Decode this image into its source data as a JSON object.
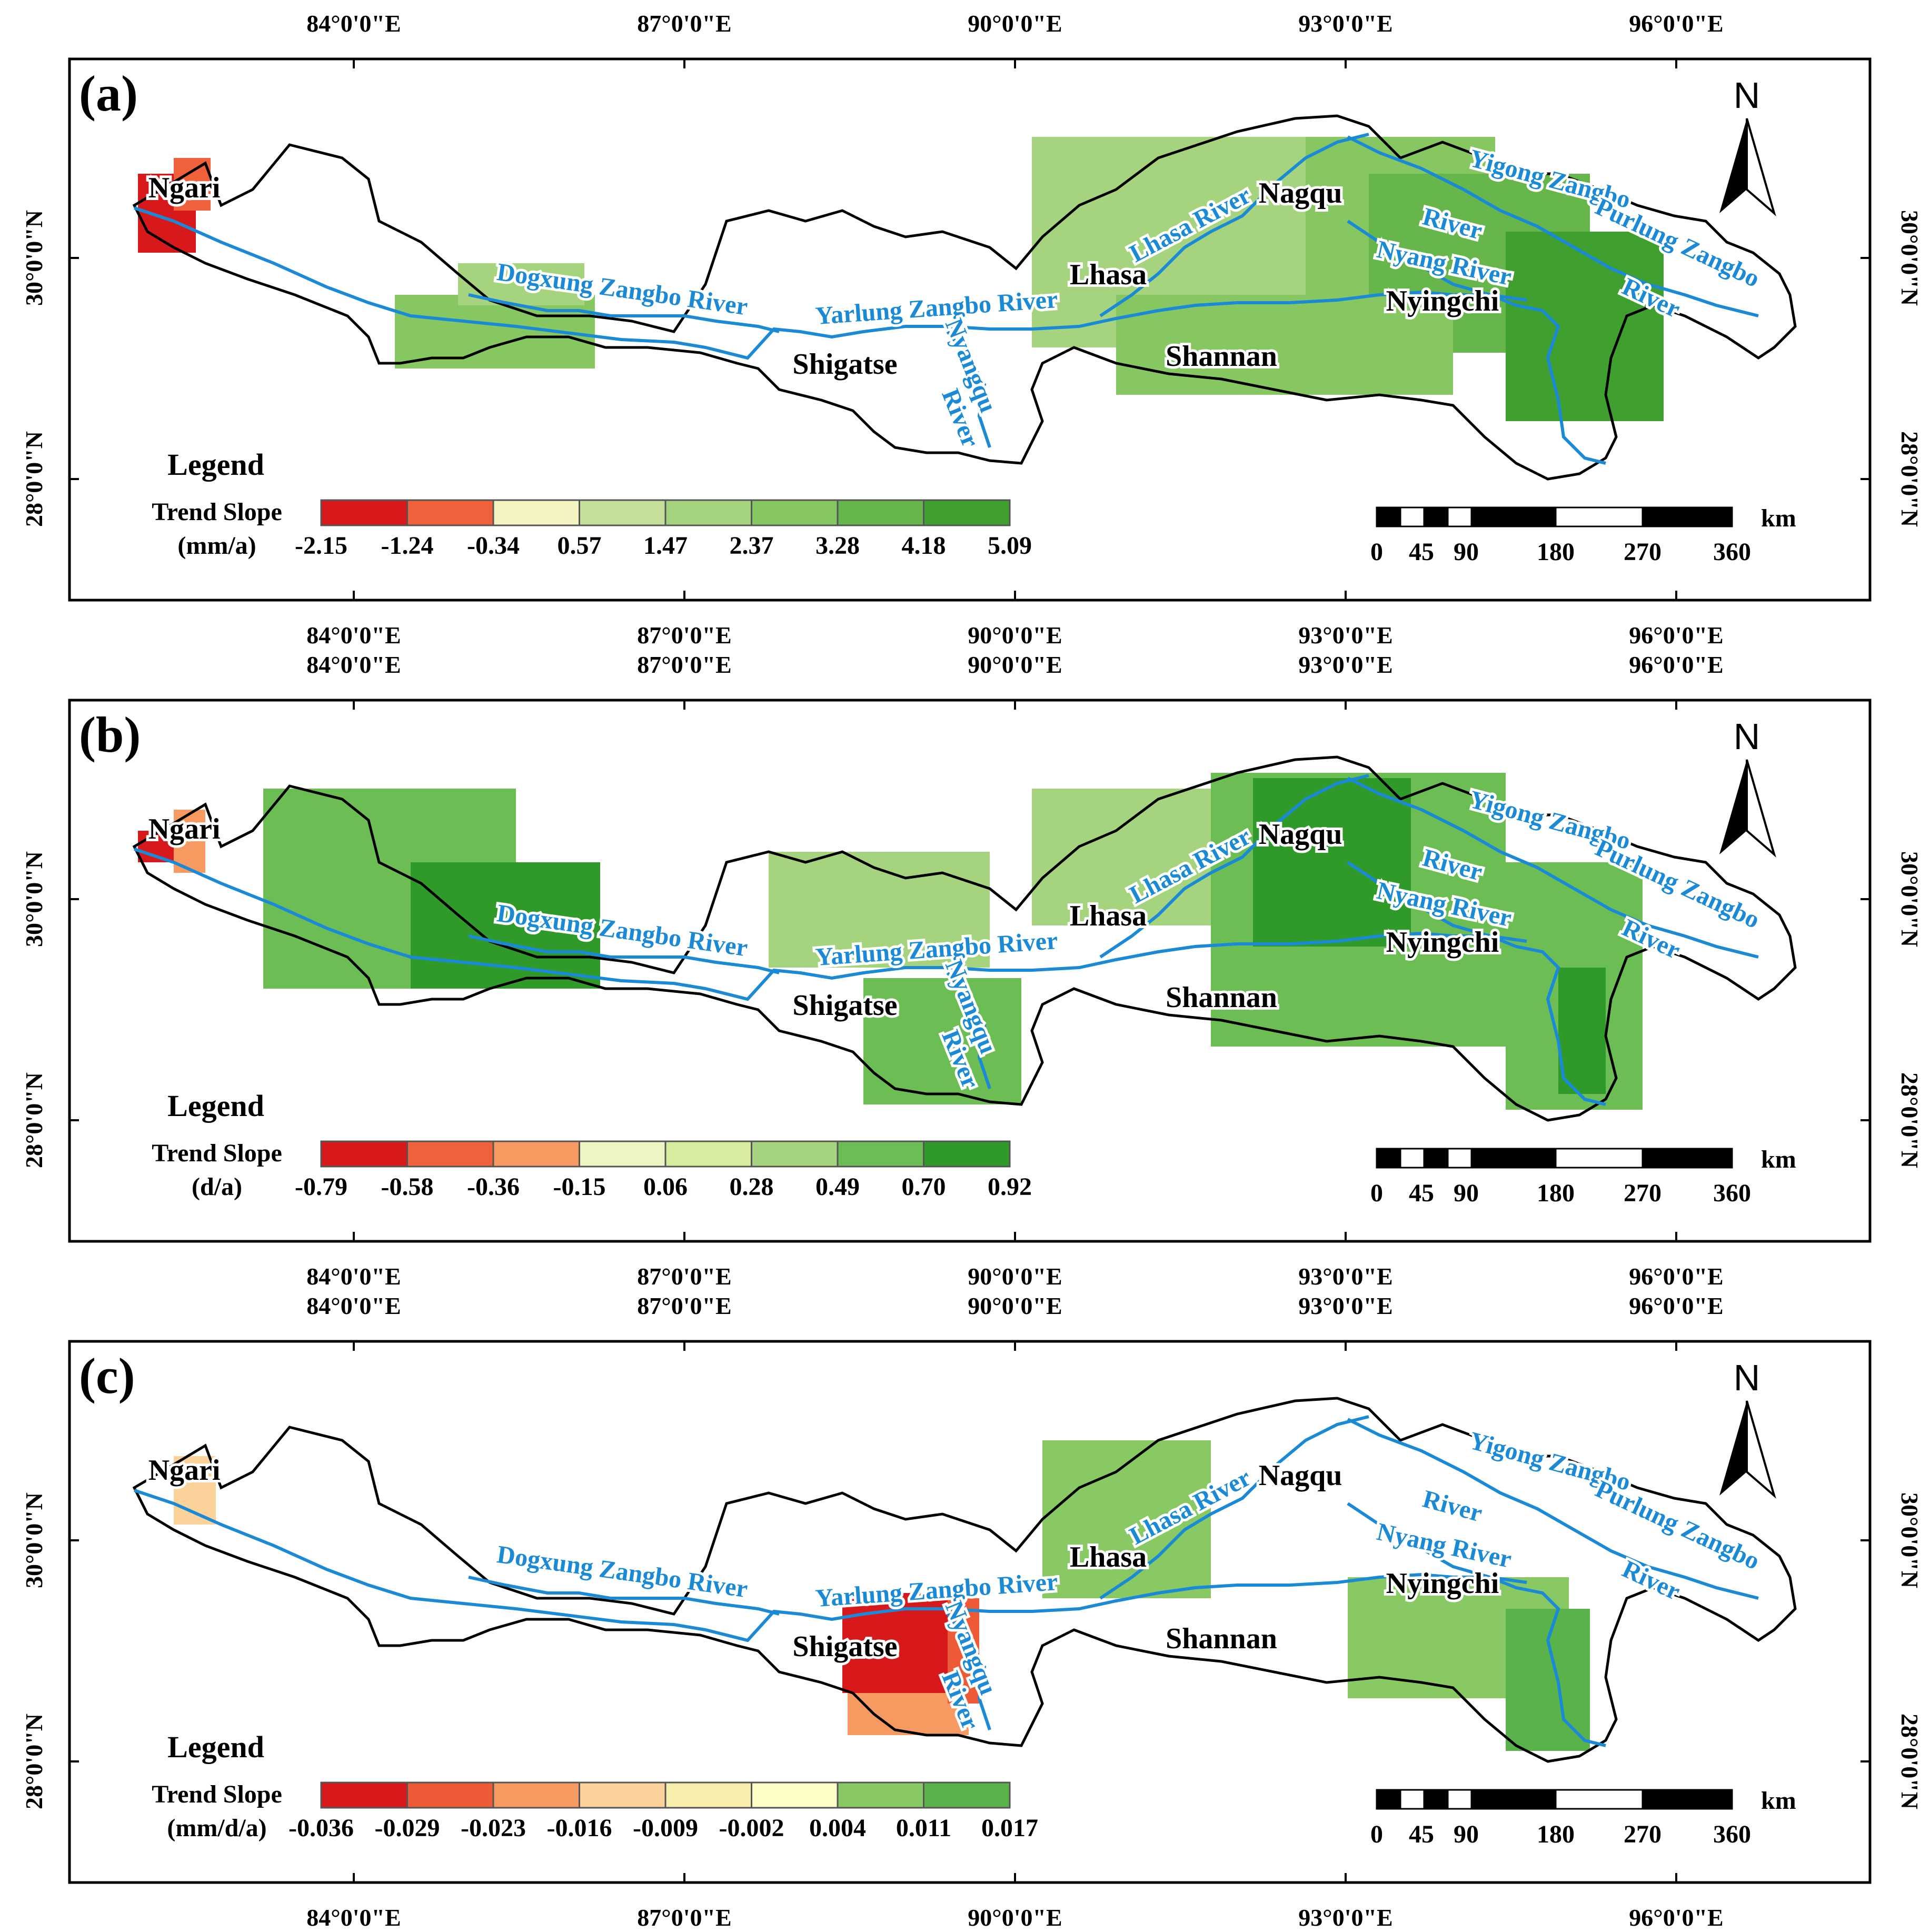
{
  "lon_ticks": [
    "84°0'0\"E",
    "87°0'0\"E",
    "90°0'0\"E",
    "93°0'0\"E",
    "96°0'0\"E"
  ],
  "lat_ticks": [
    "30°0'0\"N",
    "28°0'0\"N"
  ],
  "regions": [
    "Ngari",
    "Nagqu",
    "Lhasa",
    "Nyingchi",
    "Shigatse",
    "Shannan"
  ],
  "rivers": [
    "Lhasa River",
    "Yigong Zangbo",
    "River",
    "Purlung Zangbo",
    "River",
    "Nyang River",
    "Dogxung Zangbo River",
    "Yarlung Zangbo River",
    "Nyangqu",
    "River"
  ],
  "north_label": "N",
  "scale_labels": [
    "0",
    "45",
    "90",
    "180",
    "270",
    "360"
  ],
  "scale_unit": "km",
  "legend_title": "Legend",
  "panels": [
    {
      "label": "(a)",
      "trend_label": "Trend Slope",
      "unit": "(mm/a)",
      "breaks": [
        "-2.15",
        "-1.24",
        "-0.34",
        "0.57",
        "1.47",
        "2.37",
        "3.28",
        "4.18",
        "5.09"
      ],
      "colors": [
        "#d7191c",
        "#f0603a",
        "#f4f4c0",
        "#c4e09a",
        "#a6d47e",
        "#86c762",
        "#66b64b",
        "#3fa02f"
      ]
    },
    {
      "label": "(b)",
      "trend_label": "Trend Slope",
      "unit": "(d/a)",
      "breaks": [
        "-0.79",
        "-0.58",
        "-0.36",
        "-0.15",
        "0.06",
        "0.28",
        "0.49",
        "0.70",
        "0.92"
      ],
      "colors": [
        "#d7191c",
        "#f0603a",
        "#f79a62",
        "#eef5c2",
        "#d7ec9f",
        "#a6d47e",
        "#6cbd54",
        "#2f9a2a"
      ]
    },
    {
      "label": "(c)",
      "trend_label": "Trend Slope",
      "unit": "(mm/d/a)",
      "breaks": [
        "-0.036",
        "-0.029",
        "-0.023",
        "-0.016",
        "-0.009",
        "-0.002",
        "0.004",
        "0.011",
        "0.017"
      ],
      "colors": [
        "#d7191c",
        "#ef5a36",
        "#f79a62",
        "#fbd39a",
        "#f6eeaa",
        "#fffdc8",
        "#88c964",
        "#5ab34a"
      ]
    }
  ]
}
